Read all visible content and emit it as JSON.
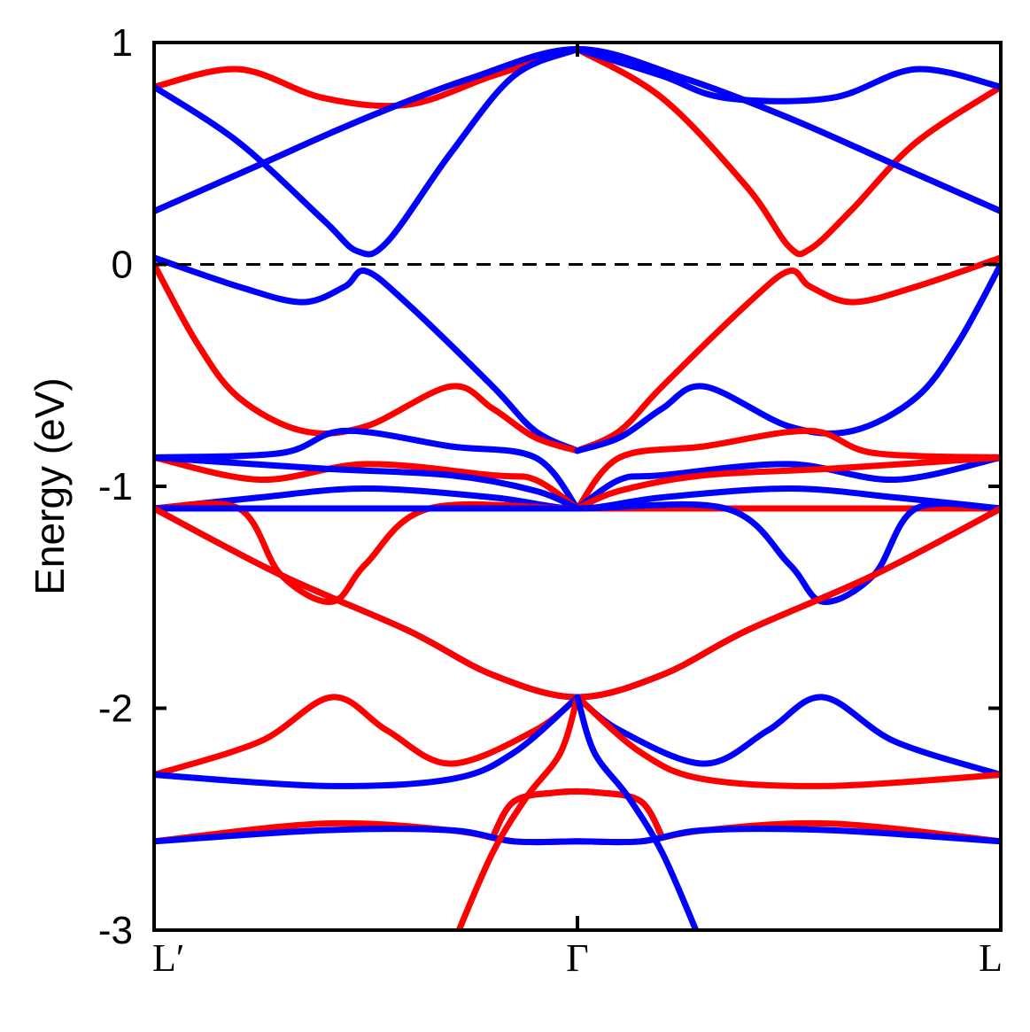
{
  "chart_data": {
    "type": "line",
    "title": "",
    "xlabel": "",
    "ylabel": "Energy (eV)",
    "xlim": [
      -1,
      1
    ],
    "ylim": [
      -3,
      1
    ],
    "x_ticks": [
      {
        "x": -1,
        "label": "L′"
      },
      {
        "x": 0,
        "label": "Γ"
      },
      {
        "x": 1,
        "label": "L"
      }
    ],
    "y_ticks": [
      {
        "y": 1,
        "label": "1"
      },
      {
        "y": 0,
        "label": "0"
      },
      {
        "y": -1,
        "label": "-1"
      },
      {
        "y": -2,
        "label": "-2"
      },
      {
        "y": -3,
        "label": "-3"
      }
    ],
    "fermi_level": 0,
    "grid": false,
    "legend": "none",
    "colors": {
      "red": "#ff0000",
      "blue": "#0000ff",
      "axis": "#000000"
    },
    "series": [
      {
        "color": "red",
        "points": [
          [
            -1,
            0.8
          ],
          [
            -0.8,
            0.88
          ],
          [
            -0.6,
            0.75
          ],
          [
            -0.4,
            0.72
          ],
          [
            -0.2,
            0.85
          ],
          [
            0,
            0.97
          ]
        ]
      },
      {
        "color": "red",
        "points": [
          [
            -1,
            0.24
          ],
          [
            -0.75,
            0.45
          ],
          [
            -0.5,
            0.66
          ],
          [
            -0.25,
            0.84
          ],
          [
            0,
            0.97
          ],
          [
            0.25,
            0.84
          ],
          [
            0.5,
            0.66
          ],
          [
            0.75,
            0.45
          ],
          [
            1,
            0.24
          ]
        ]
      },
      {
        "color": "red",
        "points": [
          [
            0,
            0.97
          ],
          [
            0.2,
            0.75
          ],
          [
            0.4,
            0.35
          ],
          [
            0.5,
            0.08
          ],
          [
            0.55,
            0.07
          ],
          [
            0.65,
            0.25
          ],
          [
            0.8,
            0.55
          ],
          [
            1,
            0.8
          ]
        ]
      },
      {
        "color": "blue",
        "points": [
          [
            -1,
            0.8
          ],
          [
            -0.8,
            0.55
          ],
          [
            -0.6,
            0.2
          ],
          [
            -0.52,
            0.06
          ],
          [
            -0.45,
            0.1
          ],
          [
            -0.3,
            0.5
          ],
          [
            -0.15,
            0.85
          ],
          [
            0,
            0.97
          ]
        ]
      },
      {
        "color": "blue",
        "points": [
          [
            -1,
            0.24
          ],
          [
            -0.75,
            0.45
          ],
          [
            -0.5,
            0.66
          ],
          [
            -0.25,
            0.84
          ],
          [
            0,
            0.97
          ],
          [
            0.25,
            0.84
          ],
          [
            0.5,
            0.66
          ],
          [
            0.75,
            0.45
          ],
          [
            1,
            0.24
          ]
        ]
      },
      {
        "color": "blue",
        "points": [
          [
            0,
            0.97
          ],
          [
            0.2,
            0.85
          ],
          [
            0.35,
            0.75
          ],
          [
            0.6,
            0.75
          ],
          [
            0.8,
            0.88
          ],
          [
            1,
            0.8
          ]
        ]
      },
      {
        "color": "blue",
        "points": [
          [
            -1,
            0.03
          ],
          [
            -0.8,
            -0.1
          ],
          [
            -0.65,
            -0.17
          ],
          [
            -0.55,
            -0.1
          ],
          [
            -0.5,
            -0.03
          ],
          [
            -0.4,
            -0.18
          ],
          [
            -0.2,
            -0.55
          ],
          [
            -0.1,
            -0.75
          ],
          [
            0,
            -0.84
          ]
        ]
      },
      {
        "color": "red",
        "points": [
          [
            0,
            -0.84
          ],
          [
            0.1,
            -0.75
          ],
          [
            0.2,
            -0.55
          ],
          [
            0.4,
            -0.18
          ],
          [
            0.5,
            -0.03
          ],
          [
            0.55,
            -0.1
          ],
          [
            0.65,
            -0.17
          ],
          [
            0.8,
            -0.1
          ],
          [
            1,
            0.03
          ]
        ]
      },
      {
        "color": "red",
        "points": [
          [
            -1,
            0.0
          ],
          [
            -0.9,
            -0.35
          ],
          [
            -0.8,
            -0.6
          ],
          [
            -0.65,
            -0.75
          ],
          [
            -0.5,
            -0.73
          ],
          [
            -0.3,
            -0.55
          ],
          [
            -0.2,
            -0.65
          ],
          [
            -0.1,
            -0.78
          ],
          [
            0,
            -0.84
          ]
        ]
      },
      {
        "color": "blue",
        "points": [
          [
            0,
            -0.84
          ],
          [
            0.1,
            -0.78
          ],
          [
            0.2,
            -0.65
          ],
          [
            0.3,
            -0.55
          ],
          [
            0.5,
            -0.73
          ],
          [
            0.65,
            -0.75
          ],
          [
            0.8,
            -0.6
          ],
          [
            0.9,
            -0.35
          ],
          [
            1,
            0.0
          ]
        ]
      },
      {
        "color": "blue",
        "points": [
          [
            -1,
            -0.87
          ],
          [
            -0.7,
            -0.85
          ],
          [
            -0.55,
            -0.75
          ],
          [
            -0.3,
            -0.82
          ],
          [
            -0.1,
            -0.87
          ],
          [
            0,
            -1.1
          ]
        ]
      },
      {
        "color": "red",
        "points": [
          [
            0,
            -1.1
          ],
          [
            0.1,
            -0.87
          ],
          [
            0.3,
            -0.82
          ],
          [
            0.55,
            -0.75
          ],
          [
            0.7,
            -0.85
          ],
          [
            1,
            -0.87
          ]
        ]
      },
      {
        "color": "red",
        "points": [
          [
            -1,
            -0.87
          ],
          [
            -0.75,
            -0.97
          ],
          [
            -0.5,
            -0.9
          ],
          [
            -0.2,
            -0.95
          ],
          [
            -0.1,
            -0.97
          ],
          [
            0,
            -1.1
          ]
        ]
      },
      {
        "color": "blue",
        "points": [
          [
            0,
            -1.1
          ],
          [
            0.1,
            -0.97
          ],
          [
            0.2,
            -0.95
          ],
          [
            0.5,
            -0.9
          ],
          [
            0.75,
            -0.97
          ],
          [
            1,
            -0.87
          ]
        ]
      },
      {
        "color": "blue",
        "points": [
          [
            -1,
            -0.87
          ],
          [
            -0.6,
            -0.92
          ],
          [
            -0.3,
            -0.95
          ],
          [
            -0.1,
            -1.02
          ],
          [
            0,
            -1.1
          ]
        ]
      },
      {
        "color": "red",
        "points": [
          [
            0,
            -1.1
          ],
          [
            0.1,
            -1.02
          ],
          [
            0.3,
            -0.95
          ],
          [
            0.6,
            -0.92
          ],
          [
            1,
            -0.87
          ]
        ]
      },
      {
        "color": "blue",
        "points": [
          [
            -1,
            -1.1
          ],
          [
            -0.75,
            -1.05
          ],
          [
            -0.5,
            -1.01
          ],
          [
            -0.2,
            -1.05
          ],
          [
            0,
            -1.1
          ],
          [
            0.2,
            -1.05
          ],
          [
            0.5,
            -1.01
          ],
          [
            0.75,
            -1.05
          ],
          [
            1,
            -1.1
          ]
        ]
      },
      {
        "color": "red",
        "points": [
          [
            -1,
            -1.1
          ],
          [
            -0.8,
            -1.1
          ],
          [
            -0.7,
            -1.4
          ],
          [
            -0.58,
            -1.52
          ],
          [
            -0.5,
            -1.35
          ],
          [
            -0.35,
            -1.1
          ],
          [
            0,
            -1.1
          ],
          [
            0.35,
            -1.1
          ],
          [
            0.7,
            -1.1
          ],
          [
            1,
            -1.1
          ]
        ]
      },
      {
        "color": "blue",
        "points": [
          [
            -1,
            -1.1
          ],
          [
            -0.7,
            -1.1
          ],
          [
            -0.35,
            -1.1
          ],
          [
            0,
            -1.1
          ],
          [
            0.35,
            -1.1
          ],
          [
            0.5,
            -1.35
          ],
          [
            0.58,
            -1.52
          ],
          [
            0.7,
            -1.4
          ],
          [
            0.8,
            -1.1
          ],
          [
            1,
            -1.1
          ]
        ]
      },
      {
        "color": "blue",
        "points": [
          [
            -1,
            -1.1
          ],
          [
            -0.7,
            -1.4
          ],
          [
            -0.4,
            -1.65
          ],
          [
            -0.2,
            -1.85
          ],
          [
            0,
            -1.95
          ],
          [
            0.2,
            -1.85
          ],
          [
            0.4,
            -1.65
          ],
          [
            0.7,
            -1.4
          ],
          [
            1,
            -1.1
          ]
        ]
      },
      {
        "color": "red",
        "points": [
          [
            -1,
            -1.1
          ],
          [
            -0.7,
            -1.4
          ],
          [
            -0.4,
            -1.65
          ],
          [
            -0.2,
            -1.85
          ],
          [
            0,
            -1.95
          ],
          [
            0.2,
            -1.85
          ],
          [
            0.4,
            -1.65
          ],
          [
            0.7,
            -1.4
          ],
          [
            1,
            -1.1
          ]
        ]
      },
      {
        "color": "red",
        "points": [
          [
            -1,
            -2.3
          ],
          [
            -0.75,
            -2.15
          ],
          [
            -0.58,
            -1.95
          ],
          [
            -0.45,
            -2.1
          ],
          [
            -0.3,
            -2.25
          ],
          [
            -0.1,
            -2.1
          ],
          [
            0,
            -1.95
          ]
        ]
      },
      {
        "color": "blue",
        "points": [
          [
            0,
            -1.95
          ],
          [
            0.1,
            -2.1
          ],
          [
            0.3,
            -2.25
          ],
          [
            0.45,
            -2.1
          ],
          [
            0.58,
            -1.95
          ],
          [
            0.75,
            -2.15
          ],
          [
            1,
            -2.3
          ]
        ]
      },
      {
        "color": "blue",
        "points": [
          [
            -1,
            -2.3
          ],
          [
            -0.6,
            -2.35
          ],
          [
            -0.3,
            -2.32
          ],
          [
            -0.15,
            -2.2
          ],
          [
            0,
            -1.95
          ]
        ]
      },
      {
        "color": "red",
        "points": [
          [
            0,
            -1.95
          ],
          [
            0.15,
            -2.2
          ],
          [
            0.3,
            -2.32
          ],
          [
            0.6,
            -2.35
          ],
          [
            1,
            -2.3
          ]
        ]
      },
      {
        "color": "blue",
        "points": [
          [
            -0.2,
            -2.58
          ],
          [
            -0.15,
            -2.42
          ],
          [
            -0.05,
            -2.38
          ],
          [
            0.05,
            -2.38
          ],
          [
            0.15,
            -2.42
          ],
          [
            0.2,
            -2.58
          ]
        ]
      },
      {
        "color": "red",
        "points": [
          [
            -0.2,
            -2.58
          ],
          [
            -0.15,
            -2.42
          ],
          [
            -0.05,
            -2.38
          ],
          [
            0.05,
            -2.38
          ],
          [
            0.15,
            -2.42
          ],
          [
            0.2,
            -2.58
          ]
        ]
      },
      {
        "color": "red",
        "points": [
          [
            -1,
            -2.6
          ],
          [
            -0.6,
            -2.52
          ],
          [
            -0.3,
            -2.55
          ],
          [
            -0.15,
            -2.6
          ],
          [
            0,
            -2.6
          ],
          [
            0.15,
            -2.6
          ],
          [
            0.3,
            -2.55
          ],
          [
            0.6,
            -2.52
          ],
          [
            1,
            -2.6
          ]
        ]
      },
      {
        "color": "blue",
        "points": [
          [
            -1,
            -2.6
          ],
          [
            -0.6,
            -2.55
          ],
          [
            -0.3,
            -2.55
          ],
          [
            -0.15,
            -2.6
          ],
          [
            0,
            -2.6
          ],
          [
            0.15,
            -2.6
          ],
          [
            0.3,
            -2.55
          ],
          [
            0.6,
            -2.55
          ],
          [
            1,
            -2.6
          ]
        ]
      },
      {
        "color": "red",
        "points": [
          [
            -0.28,
            -3.0
          ],
          [
            -0.2,
            -2.65
          ],
          [
            -0.12,
            -2.4
          ],
          [
            -0.04,
            -2.2
          ],
          [
            0,
            -1.95
          ]
        ]
      },
      {
        "color": "blue",
        "points": [
          [
            0,
            -1.95
          ],
          [
            0.04,
            -2.2
          ],
          [
            0.12,
            -2.4
          ],
          [
            0.2,
            -2.65
          ],
          [
            0.28,
            -3.0
          ]
        ]
      }
    ]
  }
}
